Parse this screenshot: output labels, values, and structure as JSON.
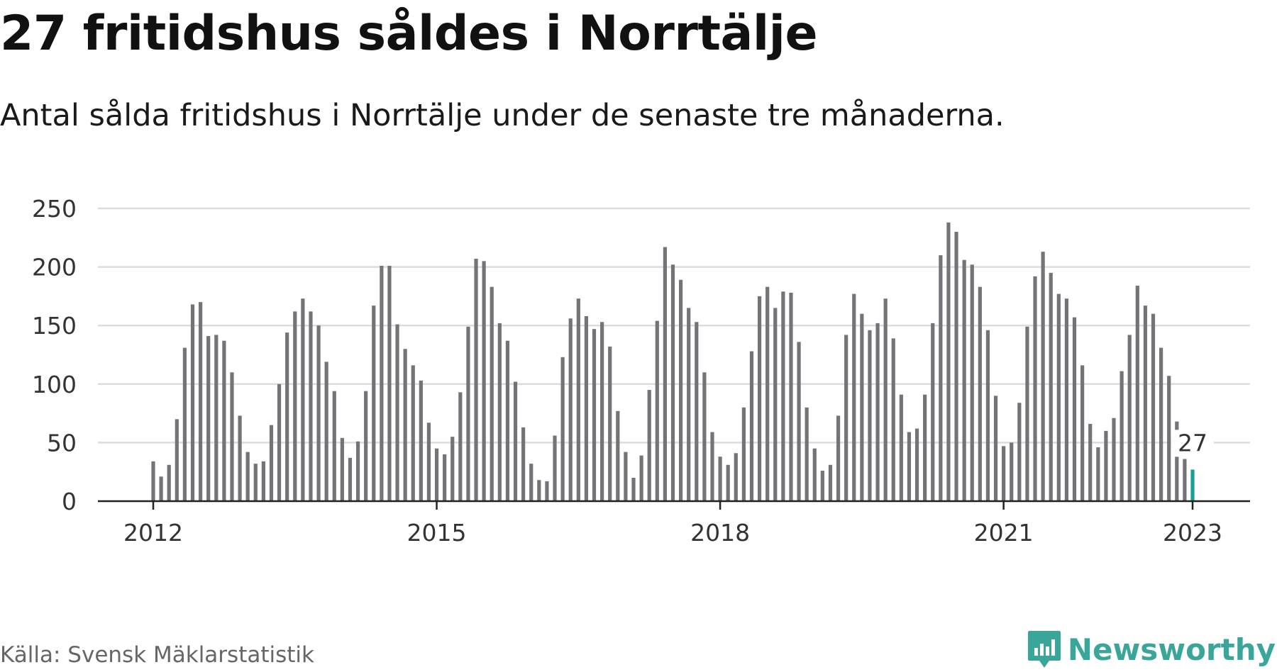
{
  "title": "27 fritidshus såldes i Norrtälje",
  "subtitle": "Antal sålda fritidshus i Norrtälje under de senaste tre månaderna.",
  "source": "Källa: Svensk Mäklarstatistik",
  "brand": "Newsworthy",
  "colors": {
    "bar": "#747478",
    "highlight": "#1a9e96",
    "grid": "#dcdcdc",
    "brand": "#3aa69a"
  },
  "icons": {
    "logo": "bar-chart-badge-icon"
  },
  "chart_data": {
    "type": "bar",
    "x_start": "2012-01",
    "x_end": "2023-01",
    "ylim": [
      0,
      250
    ],
    "yticks": [
      0,
      50,
      100,
      150,
      200,
      250
    ],
    "xticks": [
      "2012",
      "2015",
      "2018",
      "2021",
      "2023"
    ],
    "grid": true,
    "highlight_label": "27",
    "values": [
      34,
      21,
      31,
      70,
      131,
      168,
      170,
      141,
      142,
      137,
      110,
      73,
      42,
      32,
      34,
      65,
      100,
      144,
      162,
      173,
      162,
      150,
      119,
      94,
      54,
      37,
      51,
      94,
      167,
      201,
      201,
      151,
      130,
      116,
      103,
      67,
      45,
      40,
      55,
      93,
      149,
      207,
      205,
      183,
      152,
      137,
      102,
      63,
      32,
      18,
      17,
      56,
      123,
      156,
      173,
      158,
      147,
      153,
      132,
      77,
      42,
      20,
      39,
      95,
      154,
      217,
      202,
      189,
      165,
      153,
      110,
      59,
      38,
      31,
      41,
      80,
      128,
      175,
      183,
      165,
      179,
      178,
      136,
      80,
      45,
      26,
      31,
      73,
      142,
      177,
      160,
      146,
      152,
      173,
      139,
      91,
      59,
      62,
      91,
      152,
      210,
      238,
      230,
      206,
      202,
      183,
      146,
      90,
      47,
      50,
      84,
      149,
      192,
      213,
      195,
      177,
      173,
      157,
      116,
      66,
      46,
      60,
      71,
      111,
      142,
      184,
      167,
      160,
      131,
      107,
      68,
      36,
      27
    ]
  }
}
